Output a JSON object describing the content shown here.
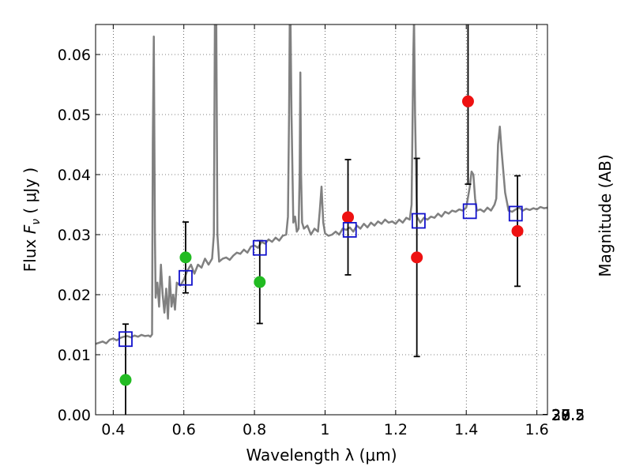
{
  "chart_data": {
    "type": "line",
    "xlabel": "Wavelength  λ (μm)",
    "ylabel_prefix": "Flux  ",
    "ylabel_symbol": "F",
    "ylabel_sub": "ν",
    "ylabel_suffix": "  ( μJy )",
    "y2label": "Magnitude (AB)",
    "xlim": [
      0.35,
      1.63
    ],
    "ylim": [
      0.0,
      0.065
    ],
    "grid": true,
    "x_ticks": [
      0.4,
      0.6,
      0.8,
      1.0,
      1.2,
      1.4,
      1.6
    ],
    "x_tick_labels": [
      "0.4",
      "0.6",
      "0.8",
      "1",
      "1.2",
      "1.4",
      "1.6"
    ],
    "y_ticks": [
      0.0,
      0.01,
      0.02,
      0.03,
      0.04,
      0.05,
      0.06
    ],
    "y_tick_labels": [
      "0.00",
      "0.01",
      "0.02",
      "0.03",
      "0.04",
      "0.05",
      "0.06"
    ],
    "mag_ticks": [
      27,
      27.2,
      27.5,
      28,
      28.5,
      29,
      30
    ],
    "mag_tick_labels": [
      "27",
      "27.2",
      "27.5",
      "28",
      "28.5",
      "29",
      "30"
    ],
    "series": [
      {
        "name": "model spectrum",
        "kind": "line",
        "color": "#808080",
        "x": [
          0.35,
          0.36,
          0.37,
          0.38,
          0.39,
          0.4,
          0.41,
          0.42,
          0.43,
          0.44,
          0.45,
          0.46,
          0.47,
          0.48,
          0.49,
          0.5,
          0.505,
          0.51,
          0.512,
          0.515,
          0.518,
          0.52,
          0.525,
          0.53,
          0.535,
          0.54,
          0.545,
          0.55,
          0.555,
          0.56,
          0.565,
          0.57,
          0.575,
          0.58,
          0.59,
          0.6,
          0.61,
          0.62,
          0.63,
          0.64,
          0.65,
          0.66,
          0.67,
          0.68,
          0.685,
          0.688,
          0.69,
          0.692,
          0.695,
          0.7,
          0.71,
          0.72,
          0.73,
          0.74,
          0.75,
          0.76,
          0.77,
          0.78,
          0.79,
          0.8,
          0.81,
          0.82,
          0.83,
          0.84,
          0.85,
          0.86,
          0.87,
          0.88,
          0.89,
          0.895,
          0.898,
          0.9,
          0.902,
          0.905,
          0.91,
          0.915,
          0.92,
          0.925,
          0.928,
          0.93,
          0.932,
          0.935,
          0.94,
          0.95,
          0.96,
          0.97,
          0.98,
          0.985,
          0.99,
          0.995,
          1.0,
          1.01,
          1.02,
          1.03,
          1.04,
          1.05,
          1.06,
          1.07,
          1.08,
          1.09,
          1.1,
          1.11,
          1.12,
          1.13,
          1.14,
          1.15,
          1.16,
          1.17,
          1.18,
          1.19,
          1.2,
          1.21,
          1.22,
          1.23,
          1.24,
          1.245,
          1.25,
          1.252,
          1.255,
          1.26,
          1.27,
          1.28,
          1.29,
          1.3,
          1.31,
          1.32,
          1.33,
          1.34,
          1.35,
          1.36,
          1.37,
          1.38,
          1.39,
          1.4,
          1.41,
          1.415,
          1.42,
          1.425,
          1.43,
          1.44,
          1.45,
          1.46,
          1.47,
          1.48,
          1.485,
          1.49,
          1.495,
          1.5,
          1.51,
          1.52,
          1.53,
          1.54,
          1.55,
          1.56,
          1.57,
          1.58,
          1.59,
          1.6,
          1.61,
          1.62,
          1.63
        ],
        "y": [
          0.0118,
          0.012,
          0.0122,
          0.0119,
          0.0125,
          0.0127,
          0.0124,
          0.0128,
          0.013,
          0.0131,
          0.0129,
          0.0132,
          0.013,
          0.0133,
          0.0131,
          0.0132,
          0.013,
          0.0134,
          0.045,
          0.063,
          0.03,
          0.0195,
          0.022,
          0.018,
          0.025,
          0.02,
          0.017,
          0.021,
          0.016,
          0.023,
          0.018,
          0.02,
          0.0175,
          0.022,
          0.0215,
          0.0225,
          0.024,
          0.025,
          0.0235,
          0.025,
          0.0245,
          0.026,
          0.025,
          0.026,
          0.03,
          0.065,
          0.066,
          0.065,
          0.03,
          0.0255,
          0.026,
          0.0262,
          0.0258,
          0.0265,
          0.027,
          0.0268,
          0.0275,
          0.027,
          0.028,
          0.0282,
          0.0278,
          0.0288,
          0.0285,
          0.0292,
          0.0288,
          0.0295,
          0.029,
          0.0298,
          0.03,
          0.033,
          0.05,
          0.066,
          0.066,
          0.05,
          0.032,
          0.033,
          0.0305,
          0.031,
          0.04,
          0.057,
          0.04,
          0.032,
          0.031,
          0.0315,
          0.03,
          0.031,
          0.0305,
          0.034,
          0.038,
          0.032,
          0.0302,
          0.0298,
          0.03,
          0.0305,
          0.03,
          0.031,
          0.0308,
          0.0312,
          0.0305,
          0.0315,
          0.031,
          0.0318,
          0.0312,
          0.032,
          0.0315,
          0.0322,
          0.0318,
          0.0325,
          0.032,
          0.0322,
          0.0318,
          0.0325,
          0.032,
          0.0328,
          0.0325,
          0.035,
          0.06,
          0.066,
          0.05,
          0.033,
          0.032,
          0.0328,
          0.0325,
          0.033,
          0.0328,
          0.0335,
          0.033,
          0.0338,
          0.0335,
          0.034,
          0.0338,
          0.0342,
          0.034,
          0.0345,
          0.038,
          0.0405,
          0.04,
          0.036,
          0.034,
          0.0342,
          0.0338,
          0.0345,
          0.034,
          0.035,
          0.036,
          0.045,
          0.048,
          0.044,
          0.037,
          0.034,
          0.0338,
          0.0342,
          0.0345,
          0.034,
          0.0343,
          0.0341,
          0.0344,
          0.0342,
          0.0346,
          0.0344,
          0.0345
        ]
      },
      {
        "name": "green detections",
        "kind": "points",
        "marker": "circle",
        "color": "#22bb22",
        "x": [
          0.435,
          0.605,
          0.815
        ],
        "y": [
          0.0058,
          0.0262,
          0.0221
        ],
        "yerr": [
          0.0093,
          0.0059,
          0.0069
        ]
      },
      {
        "name": "red detections",
        "kind": "points",
        "marker": "circle",
        "color": "#ee1111",
        "x": [
          1.065,
          1.26,
          1.405,
          1.545
        ],
        "y": [
          0.0329,
          0.0262,
          0.0522,
          0.0306
        ],
        "yerr": [
          0.0096,
          0.0165,
          0.0138,
          0.0092
        ]
      },
      {
        "name": "model photometry",
        "kind": "points",
        "marker": "open-square",
        "color": "#1111cc",
        "x": [
          0.435,
          0.605,
          0.815,
          1.07,
          1.265,
          1.41,
          1.54
        ],
        "y": [
          0.0126,
          0.0228,
          0.0278,
          0.0308,
          0.0323,
          0.0339,
          0.0335
        ]
      }
    ]
  }
}
